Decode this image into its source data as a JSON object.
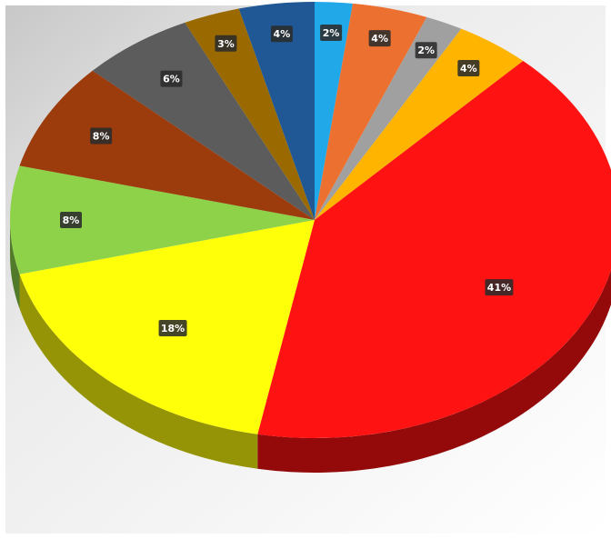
{
  "chart_data": {
    "type": "pie",
    "style": "3d",
    "title": "",
    "legend": "none",
    "slices": [
      {
        "label": "2%",
        "value": 2,
        "color": "#21a8e8"
      },
      {
        "label": "4%",
        "value": 4,
        "color": "#ec7030"
      },
      {
        "label": "2%",
        "value": 2,
        "color": "#a0a0a0"
      },
      {
        "label": "4%",
        "value": 4,
        "color": "#ffb400"
      },
      {
        "label": "41%",
        "value": 41,
        "color": "#ff1212"
      },
      {
        "label": "18%",
        "value": 18,
        "color": "#ffff0a"
      },
      {
        "label": "8%",
        "value": 8,
        "color": "#8ed24a"
      },
      {
        "label": "8%",
        "value": 8,
        "color": "#9c3c0c"
      },
      {
        "label": "6%",
        "value": 6,
        "color": "#5c5c5c"
      },
      {
        "label": "3%",
        "value": 3,
        "color": "#9a6a00"
      },
      {
        "label": "4%",
        "value": 4,
        "color": "#1f5894"
      }
    ]
  }
}
